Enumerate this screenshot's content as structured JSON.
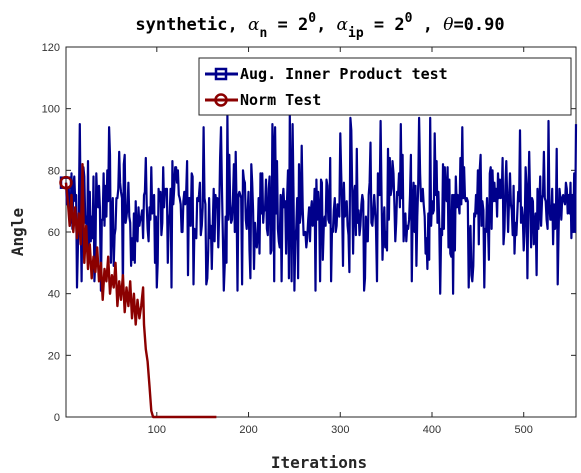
{
  "chart_data": {
    "type": "line",
    "title": {
      "prefix": "synthetic, ",
      "alpha_n_sym": "α",
      "alpha_n_sub": "n",
      "alpha_n_eq": " = 2",
      "alpha_n_sup": "0",
      "sep": ", ",
      "alpha_ip_sym": "α",
      "alpha_ip_sub": "ip",
      "alpha_ip_eq": " = 2",
      "alpha_ip_sup": "0",
      "sep2": " , ",
      "theta_sym": "θ",
      "theta_eq": "=0.90"
    },
    "xlabel": "Iterations",
    "ylabel": "Angle",
    "xlim": [
      1,
      557
    ],
    "ylim": [
      0,
      120
    ],
    "xticks": [
      100,
      200,
      300,
      400,
      500
    ],
    "yticks": [
      0,
      20,
      40,
      60,
      80,
      100,
      120
    ],
    "legend_position": "top-right",
    "series": [
      {
        "name": "Aug. Inner Product test",
        "color": "#00008B",
        "marker": "square",
        "generated_range": {
          "x_start": 1,
          "x_end": 557,
          "mean": 67,
          "spread": 11,
          "min": 40,
          "max": 98
        },
        "first_point": [
          1,
          76
        ]
      },
      {
        "name": "Norm Test",
        "color": "#8B0000",
        "marker": "circle",
        "points": [
          [
            1,
            76
          ],
          [
            3,
            70
          ],
          [
            5,
            62
          ],
          [
            7,
            72
          ],
          [
            9,
            60
          ],
          [
            11,
            68
          ],
          [
            13,
            58
          ],
          [
            15,
            66
          ],
          [
            17,
            56
          ],
          [
            19,
            82
          ],
          [
            21,
            50
          ],
          [
            23,
            62
          ],
          [
            25,
            48
          ],
          [
            27,
            56
          ],
          [
            29,
            45
          ],
          [
            31,
            52
          ],
          [
            33,
            47
          ],
          [
            35,
            55
          ],
          [
            37,
            44
          ],
          [
            39,
            50
          ],
          [
            41,
            38
          ],
          [
            43,
            48
          ],
          [
            45,
            44
          ],
          [
            47,
            52
          ],
          [
            49,
            40
          ],
          [
            51,
            46
          ],
          [
            53,
            42
          ],
          [
            55,
            50
          ],
          [
            57,
            36
          ],
          [
            59,
            44
          ],
          [
            61,
            38
          ],
          [
            63,
            46
          ],
          [
            65,
            34
          ],
          [
            67,
            42
          ],
          [
            69,
            36
          ],
          [
            71,
            44
          ],
          [
            73,
            32
          ],
          [
            75,
            40
          ],
          [
            77,
            30
          ],
          [
            79,
            38
          ],
          [
            81,
            32
          ],
          [
            83,
            36
          ],
          [
            85,
            42
          ],
          [
            86,
            30
          ],
          [
            88,
            22
          ],
          [
            90,
            18
          ],
          [
            92,
            10
          ],
          [
            94,
            2
          ],
          [
            96,
            0
          ],
          [
            120,
            0
          ],
          [
            150,
            0
          ],
          [
            165,
            0
          ]
        ]
      }
    ]
  }
}
